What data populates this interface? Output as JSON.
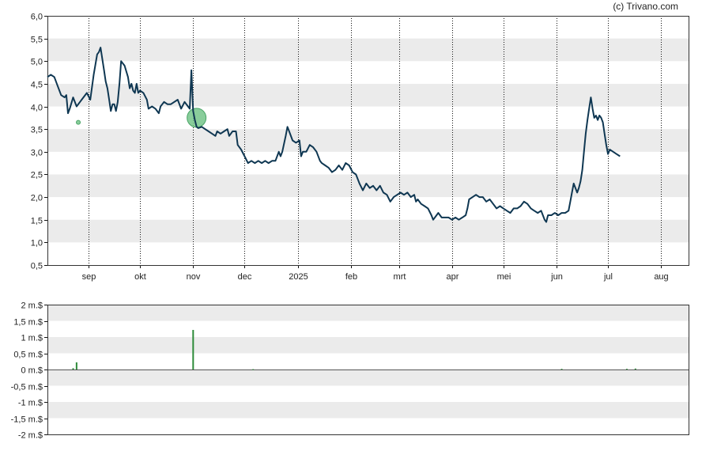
{
  "copyright": "(c) Trivano.com",
  "colors": {
    "line": "#0f3752",
    "band": "#ebebeb",
    "volume_pos": "#2e8b3a",
    "marker": "#74c48a",
    "axis": "#222222"
  },
  "chart_data": [
    {
      "type": "line",
      "ylim": [
        0.5,
        6.0
      ],
      "y_ticks": [
        "0,5",
        "1,0",
        "1,5",
        "2,0",
        "2,5",
        "3,0",
        "3,5",
        "4,0",
        "4,5",
        "5,0",
        "5,5",
        "6,0"
      ],
      "y_tick_values": [
        0.5,
        1.0,
        1.5,
        2.0,
        2.5,
        3.0,
        3.5,
        4.0,
        4.5,
        5.0,
        5.5,
        6.0
      ],
      "x_range": [
        0,
        374
      ],
      "x_ticks": [
        {
          "label": "sep",
          "x": 24
        },
        {
          "label": "okt",
          "x": 54
        },
        {
          "label": "nov",
          "x": 85
        },
        {
          "label": "dec",
          "x": 115
        },
        {
          "label": "2025",
          "x": 146
        },
        {
          "label": "feb",
          "x": 177
        },
        {
          "label": "mrt",
          "x": 205
        },
        {
          "label": "apr",
          "x": 236
        },
        {
          "label": "mei",
          "x": 266
        },
        {
          "label": "jun",
          "x": 297
        },
        {
          "label": "jul",
          "x": 327
        },
        {
          "label": "aug",
          "x": 358
        }
      ],
      "series": [
        {
          "points": [
            [
              0,
              4.65
            ],
            [
              2,
              4.7
            ],
            [
              4,
              4.65
            ],
            [
              6,
              4.45
            ],
            [
              8,
              4.25
            ],
            [
              10,
              4.2
            ],
            [
              11,
              4.25
            ],
            [
              12,
              3.85
            ],
            [
              13,
              3.95
            ],
            [
              15,
              4.2
            ],
            [
              17,
              4.0
            ],
            [
              19,
              4.1
            ],
            [
              21,
              4.2
            ],
            [
              23,
              4.3
            ],
            [
              25,
              4.15
            ],
            [
              27,
              4.7
            ],
            [
              29,
              5.15
            ],
            [
              30,
              5.2
            ],
            [
              31,
              5.3
            ],
            [
              32,
              5.05
            ],
            [
              33,
              4.8
            ],
            [
              34,
              4.55
            ],
            [
              35,
              4.4
            ],
            [
              36,
              4.15
            ],
            [
              37,
              3.9
            ],
            [
              38,
              4.05
            ],
            [
              39,
              4.05
            ],
            [
              40,
              3.9
            ],
            [
              41,
              4.1
            ],
            [
              42,
              4.5
            ],
            [
              43,
              5.0
            ],
            [
              45,
              4.9
            ],
            [
              47,
              4.65
            ],
            [
              48,
              4.4
            ],
            [
              49,
              4.5
            ],
            [
              50,
              4.35
            ],
            [
              51,
              4.3
            ],
            [
              52,
              4.5
            ],
            [
              53,
              4.3
            ],
            [
              54,
              4.35
            ],
            [
              56,
              4.3
            ],
            [
              58,
              4.15
            ],
            [
              59,
              3.95
            ],
            [
              61,
              4.0
            ],
            [
              63,
              3.95
            ],
            [
              65,
              3.85
            ],
            [
              66,
              4.0
            ],
            [
              68,
              4.1
            ],
            [
              70,
              4.05
            ],
            [
              72,
              4.05
            ],
            [
              74,
              4.1
            ],
            [
              76,
              4.15
            ],
            [
              78,
              3.95
            ],
            [
              80,
              4.1
            ],
            [
              82,
              4.0
            ],
            [
              83,
              3.95
            ],
            [
              84,
              4.8
            ],
            [
              85,
              3.9
            ],
            [
              86,
              3.7
            ],
            [
              87,
              3.55
            ],
            [
              88,
              3.52
            ],
            [
              90,
              3.55
            ],
            [
              92,
              3.5
            ],
            [
              94,
              3.45
            ],
            [
              96,
              3.4
            ],
            [
              98,
              3.35
            ],
            [
              99,
              3.45
            ],
            [
              101,
              3.4
            ],
            [
              103,
              3.45
            ],
            [
              105,
              3.5
            ],
            [
              106,
              3.35
            ],
            [
              108,
              3.45
            ],
            [
              110,
              3.45
            ],
            [
              111,
              3.15
            ],
            [
              113,
              3.05
            ],
            [
              115,
              2.9
            ],
            [
              117,
              2.75
            ],
            [
              119,
              2.8
            ],
            [
              121,
              2.75
            ],
            [
              123,
              2.8
            ],
            [
              125,
              2.75
            ],
            [
              127,
              2.8
            ],
            [
              129,
              2.75
            ],
            [
              131,
              2.8
            ],
            [
              133,
              2.8
            ],
            [
              135,
              3.0
            ],
            [
              136,
              2.9
            ],
            [
              137,
              3.0
            ],
            [
              139,
              3.35
            ],
            [
              140,
              3.55
            ],
            [
              141,
              3.45
            ],
            [
              143,
              3.25
            ],
            [
              145,
              3.2
            ],
            [
              147,
              3.25
            ],
            [
              148,
              2.9
            ],
            [
              149,
              3.0
            ],
            [
              151,
              3.0
            ],
            [
              153,
              3.15
            ],
            [
              155,
              3.1
            ],
            [
              157,
              3.0
            ],
            [
              159,
              2.8
            ],
            [
              160,
              2.75
            ],
            [
              162,
              2.7
            ],
            [
              164,
              2.65
            ],
            [
              166,
              2.55
            ],
            [
              168,
              2.6
            ],
            [
              170,
              2.7
            ],
            [
              172,
              2.6
            ],
            [
              174,
              2.75
            ],
            [
              176,
              2.7
            ],
            [
              178,
              2.55
            ],
            [
              180,
              2.5
            ],
            [
              182,
              2.3
            ],
            [
              184,
              2.15
            ],
            [
              186,
              2.3
            ],
            [
              188,
              2.2
            ],
            [
              190,
              2.25
            ],
            [
              192,
              2.15
            ],
            [
              194,
              2.25
            ],
            [
              196,
              2.1
            ],
            [
              198,
              2.05
            ],
            [
              200,
              1.9
            ],
            [
              202,
              2.0
            ],
            [
              204,
              2.05
            ],
            [
              206,
              2.1
            ],
            [
              208,
              2.05
            ],
            [
              210,
              2.1
            ],
            [
              212,
              2.0
            ],
            [
              214,
              2.05
            ],
            [
              215,
              1.9
            ],
            [
              216,
              1.95
            ],
            [
              218,
              1.85
            ],
            [
              220,
              1.8
            ],
            [
              222,
              1.75
            ],
            [
              224,
              1.6
            ],
            [
              225,
              1.5
            ],
            [
              226,
              1.55
            ],
            [
              228,
              1.65
            ],
            [
              230,
              1.55
            ],
            [
              232,
              1.55
            ],
            [
              234,
              1.55
            ],
            [
              236,
              1.5
            ],
            [
              238,
              1.55
            ],
            [
              240,
              1.5
            ],
            [
              242,
              1.55
            ],
            [
              244,
              1.6
            ],
            [
              245,
              1.75
            ],
            [
              246,
              1.95
            ],
            [
              248,
              2.0
            ],
            [
              250,
              2.05
            ],
            [
              252,
              2.0
            ],
            [
              254,
              2.0
            ],
            [
              256,
              1.9
            ],
            [
              258,
              1.95
            ],
            [
              260,
              1.85
            ],
            [
              262,
              1.75
            ],
            [
              264,
              1.8
            ],
            [
              266,
              1.75
            ],
            [
              268,
              1.7
            ],
            [
              270,
              1.65
            ],
            [
              272,
              1.75
            ],
            [
              274,
              1.75
            ],
            [
              276,
              1.8
            ],
            [
              278,
              1.9
            ],
            [
              280,
              1.85
            ],
            [
              282,
              1.75
            ],
            [
              284,
              1.7
            ],
            [
              286,
              1.65
            ],
            [
              288,
              1.7
            ],
            [
              289,
              1.6
            ],
            [
              290,
              1.5
            ],
            [
              291,
              1.45
            ],
            [
              292,
              1.6
            ],
            [
              294,
              1.6
            ],
            [
              296,
              1.65
            ],
            [
              298,
              1.6
            ],
            [
              300,
              1.65
            ],
            [
              302,
              1.65
            ],
            [
              304,
              1.7
            ],
            [
              305,
              1.9
            ],
            [
              306,
              2.1
            ],
            [
              307,
              2.3
            ],
            [
              308,
              2.2
            ],
            [
              309,
              2.1
            ],
            [
              310,
              2.2
            ],
            [
              311,
              2.35
            ],
            [
              312,
              2.6
            ],
            [
              313,
              3.0
            ],
            [
              314,
              3.4
            ],
            [
              315,
              3.7
            ],
            [
              316,
              3.95
            ],
            [
              317,
              4.2
            ],
            [
              318,
              3.95
            ],
            [
              319,
              3.75
            ],
            [
              320,
              3.8
            ],
            [
              321,
              3.7
            ],
            [
              322,
              3.8
            ],
            [
              323,
              3.75
            ],
            [
              324,
              3.65
            ],
            [
              325,
              3.4
            ],
            [
              326,
              3.15
            ],
            [
              327,
              2.95
            ],
            [
              328,
              3.05
            ],
            [
              330,
              3.0
            ],
            [
              332,
              2.95
            ],
            [
              334,
              2.9
            ]
          ]
        }
      ],
      "markers": [
        {
          "x": 18,
          "y": 3.65,
          "size": "small"
        },
        {
          "x": 87,
          "y": 3.75,
          "size": "large"
        }
      ]
    },
    {
      "type": "bar",
      "ylim": [
        -2,
        2
      ],
      "y_ticks": [
        "2 m.$",
        "1,5 m.$",
        "1 m.$",
        "0,5 m.$",
        "0 m.$",
        "-0,5 m.$",
        "-1 m.$",
        "-1,5 m.$",
        "-2 m.$"
      ],
      "y_tick_values": [
        2,
        1.5,
        1,
        0.5,
        0,
        -0.5,
        -1,
        -1.5,
        -2
      ],
      "x_range": [
        0,
        374
      ],
      "bars": [
        {
          "x": 15,
          "value": 0.04
        },
        {
          "x": 17,
          "value": 0.22
        },
        {
          "x": 85,
          "value": 1.22
        },
        {
          "x": 120,
          "value": 0.01
        },
        {
          "x": 300,
          "value": 0.02
        },
        {
          "x": 338,
          "value": 0.02
        },
        {
          "x": 343,
          "value": 0.03
        }
      ]
    }
  ]
}
